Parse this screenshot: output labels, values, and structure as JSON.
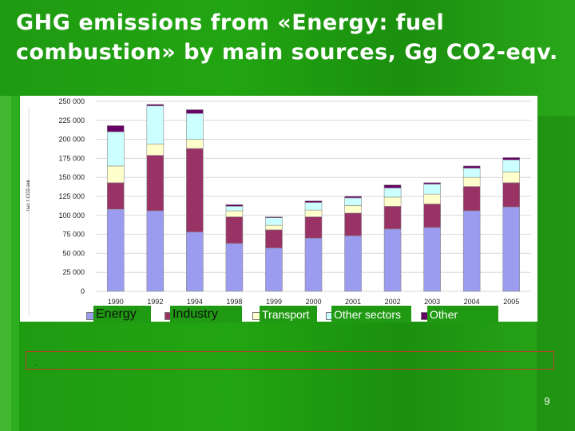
{
  "slide": {
    "title": "GHG emissions from «Energy: fuel combustion» by main sources, Gg CO2-eqv.",
    "notes_text": ".",
    "page_number": "9"
  },
  "colors": {
    "energy": "#9b9bf0",
    "industry": "#993366",
    "transport": "#ffffcc",
    "other_sectors": "#ccffff",
    "other": "#660066",
    "legend_bg": "#1f9a12"
  },
  "chart_data": {
    "type": "bar",
    "stacked": true,
    "title": "",
    "xlabel": "",
    "ylabel": "тыс т CO2-экв",
    "ylim": [
      0,
      250000
    ],
    "yticks": [
      "0",
      "25 000",
      "50 000",
      "75 000",
      "100 000",
      "125 000",
      "150 000",
      "175 000",
      "200 000",
      "225 000",
      "250 000"
    ],
    "grid": true,
    "legend_position": "bottom",
    "categories": [
      "1990",
      "1992",
      "1994",
      "1998",
      "1999",
      "2000",
      "2001",
      "2002",
      "2003",
      "2004",
      "2005"
    ],
    "series": [
      {
        "name": "Energy",
        "color": "#9b9bf0",
        "values": [
          108000,
          106000,
          78000,
          63000,
          57000,
          70000,
          73000,
          82000,
          84000,
          106000,
          111000
        ]
      },
      {
        "name": "Industry",
        "color": "#993366",
        "values": [
          35000,
          73000,
          110000,
          35000,
          24000,
          28000,
          30000,
          30000,
          31000,
          32000,
          32000
        ]
      },
      {
        "name": "Transport",
        "color": "#ffffcc",
        "values": [
          22000,
          15000,
          12000,
          8000,
          6000,
          9000,
          10000,
          12000,
          13000,
          12000,
          14000
        ]
      },
      {
        "name": "Other sectors",
        "color": "#ccffff",
        "values": [
          45000,
          50000,
          34000,
          6000,
          10000,
          10000,
          10000,
          12000,
          13000,
          12000,
          16000
        ]
      },
      {
        "name": "Other",
        "color": "#660066",
        "values": [
          8000,
          2000,
          5000,
          2000,
          1000,
          2000,
          2000,
          4000,
          2000,
          3000,
          3000
        ]
      }
    ]
  }
}
